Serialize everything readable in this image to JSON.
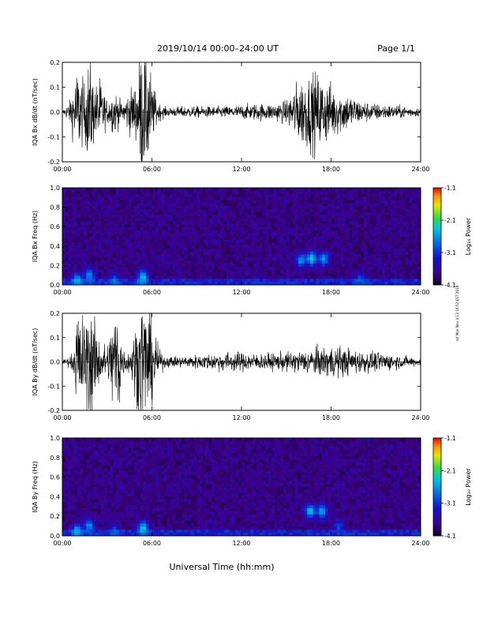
{
  "header": {
    "title": "2019/10/14  00:00–24:00 UT",
    "page": "Page 1/1"
  },
  "side_note": "ssf Mon Nov 4 13:16:52 EST 2019",
  "x_axis": {
    "label": "Universal Time (hh:mm)",
    "ticks": [
      "00:00",
      "06:00",
      "12:00",
      "18:00",
      "24:00"
    ]
  },
  "chart_data": [
    {
      "type": "line",
      "ylabel": "IQA Bx dB/dt (nT/sec)",
      "xlim": [
        0,
        24
      ],
      "ylim": [
        -0.2,
        0.2
      ],
      "yticks": [
        "0.2",
        "0.1",
        "0.0",
        "-0.1",
        "-0.2"
      ],
      "series": [
        {
          "x": [
            0,
            0.5,
            1.0,
            1.5,
            1.8,
            2.2,
            2.5,
            3.0,
            3.5,
            4.0,
            4.5,
            5.0,
            5.2,
            5.5,
            5.8,
            6.0,
            6.5,
            7.0,
            8,
            9,
            10,
            11,
            12,
            13,
            14,
            15,
            15.5,
            16,
            16.5,
            17,
            17.5,
            18,
            18.5,
            19,
            20,
            21,
            22,
            23,
            24
          ],
          "amplitude": [
            0.005,
            0.04,
            0.16,
            0.1,
            0.2,
            0.09,
            0.12,
            0.04,
            0.08,
            0.03,
            0.08,
            0.1,
            0.22,
            0.22,
            0.2,
            0.1,
            0.03,
            0.015,
            0.02,
            0.02,
            0.02,
            0.02,
            0.025,
            0.03,
            0.03,
            0.04,
            0.09,
            0.12,
            0.13,
            0.14,
            0.12,
            0.1,
            0.08,
            0.07,
            0.04,
            0.03,
            0.025,
            0.02,
            0.015
          ]
        }
      ]
    },
    {
      "type": "heatmap",
      "ylabel": "IQA Bx Freq (Hz)",
      "xlim": [
        0,
        24
      ],
      "ylim": [
        0,
        1.0
      ],
      "yticks": [
        "1.0",
        "0.8",
        "0.6",
        "0.4",
        "0.2",
        "0.0"
      ],
      "colorbar": {
        "label": "Log₁₀ Power",
        "ticks": [
          "-1.1",
          "-2.1",
          "-3.1",
          "-4.1"
        ],
        "range": [
          -4.1,
          -1.1
        ]
      },
      "features": [
        {
          "t": 1.0,
          "f": 0.05,
          "power": -2.4
        },
        {
          "t": 1.8,
          "f": 0.1,
          "power": -2.6
        },
        {
          "t": 3.5,
          "f": 0.04,
          "power": -2.8
        },
        {
          "t": 5.4,
          "f": 0.08,
          "power": -2.3
        },
        {
          "t": 16.0,
          "f": 0.25,
          "power": -2.6
        },
        {
          "t": 16.7,
          "f": 0.27,
          "power": -2.3
        },
        {
          "t": 17.5,
          "f": 0.27,
          "power": -2.5
        },
        {
          "t": 20.0,
          "f": 0.05,
          "power": -2.9
        }
      ]
    },
    {
      "type": "line",
      "ylabel": "IQA By dB/dt (nT/sec)",
      "xlim": [
        0,
        24
      ],
      "ylim": [
        -0.2,
        0.2
      ],
      "yticks": [
        "0.2",
        "0.1",
        "0.0",
        "-0.1",
        "-0.2"
      ],
      "series": [
        {
          "x": [
            0,
            0.5,
            0.8,
            1.0,
            1.5,
            1.8,
            2.0,
            2.5,
            3.0,
            3.5,
            3.8,
            4.0,
            4.5,
            5.0,
            5.3,
            5.6,
            6.0,
            6.5,
            7,
            8,
            9,
            10,
            11,
            12,
            13,
            14,
            15,
            16,
            17,
            18,
            19,
            20,
            21,
            22,
            23,
            24
          ],
          "amplitude": [
            0.005,
            0.02,
            0.05,
            0.2,
            0.15,
            0.22,
            0.18,
            0.08,
            0.06,
            0.2,
            0.22,
            0.05,
            0.04,
            0.15,
            0.25,
            0.22,
            0.15,
            0.04,
            0.02,
            0.02,
            0.025,
            0.03,
            0.035,
            0.035,
            0.03,
            0.03,
            0.035,
            0.04,
            0.05,
            0.06,
            0.05,
            0.04,
            0.035,
            0.03,
            0.02,
            0.015
          ]
        }
      ]
    },
    {
      "type": "heatmap",
      "ylabel": "IQA By Freq (Hz)",
      "xlim": [
        0,
        24
      ],
      "ylim": [
        0,
        1.0
      ],
      "yticks": [
        "1.0",
        "0.8",
        "0.6",
        "0.4",
        "0.2",
        "0.0"
      ],
      "colorbar": {
        "label": "Log₁₀ Power",
        "ticks": [
          "-1.1",
          "-2.1",
          "-3.1",
          "-4.1"
        ],
        "range": [
          -4.1,
          -1.1
        ]
      },
      "features": [
        {
          "t": 1.0,
          "f": 0.05,
          "power": -2.4
        },
        {
          "t": 1.8,
          "f": 0.1,
          "power": -2.6
        },
        {
          "t": 3.5,
          "f": 0.04,
          "power": -2.8
        },
        {
          "t": 5.4,
          "f": 0.08,
          "power": -2.3
        },
        {
          "t": 16.6,
          "f": 0.25,
          "power": -2.4
        },
        {
          "t": 17.4,
          "f": 0.25,
          "power": -2.5
        },
        {
          "t": 18.5,
          "f": 0.1,
          "power": -3.0
        }
      ]
    }
  ]
}
